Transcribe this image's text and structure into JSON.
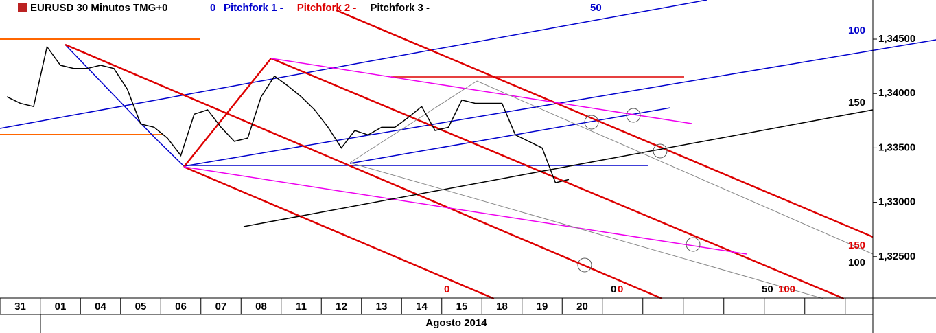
{
  "chart_data": {
    "type": "line",
    "title": "EURUSD 30 Minutos TMG+0",
    "legend": [
      "Pitchfork 1 -",
      "Pitchfork 2 -",
      "Pitchfork 3 -"
    ],
    "legend_colors": [
      "#0000cc",
      "#dd0000",
      "#000000"
    ],
    "period_label": "Agosto 2014",
    "categories": [
      "31",
      null,
      null,
      "01",
      null,
      null,
      "04",
      null,
      null,
      "05",
      null,
      null,
      "06",
      null,
      null,
      "07",
      null,
      null,
      "08",
      null,
      null,
      "11",
      null,
      null,
      "12",
      null,
      null,
      "13",
      null,
      null,
      "14",
      null,
      null,
      "15",
      null,
      null,
      "18",
      null,
      null,
      "19",
      null,
      null,
      "20"
    ],
    "series": [
      {
        "name": "EURUSD",
        "color": "#000000",
        "values": [
          1.3397,
          1.3391,
          1.3388,
          1.3443,
          1.3426,
          1.3423,
          1.3423,
          1.3426,
          1.3423,
          1.3404,
          1.3372,
          1.3369,
          1.3359,
          1.3343,
          1.3381,
          1.3385,
          1.3369,
          1.3356,
          1.3359,
          1.3397,
          1.3416,
          1.3407,
          1.3397,
          1.3385,
          1.3369,
          1.335,
          1.3366,
          1.3362,
          1.3369,
          1.3369,
          1.3378,
          1.3388,
          1.3366,
          1.3369,
          1.3394,
          1.3391,
          1.3391,
          1.3391,
          1.3362,
          1.3356,
          1.335,
          1.3318,
          1.3321
        ]
      }
    ],
    "ylim": [
      1.3212,
      1.3486
    ],
    "yticks": [
      {
        "value": 1.325,
        "label": "1,32500"
      },
      {
        "value": 1.33,
        "label": "1,33000"
      },
      {
        "value": 1.335,
        "label": "1,33500"
      },
      {
        "value": 1.34,
        "label": "1,34000"
      },
      {
        "value": 1.345,
        "label": "1,34500"
      }
    ],
    "annotations": [
      "0",
      "50",
      "100",
      "150",
      "100",
      "50",
      "0",
      "0",
      "0",
      "100",
      "150"
    ]
  }
}
